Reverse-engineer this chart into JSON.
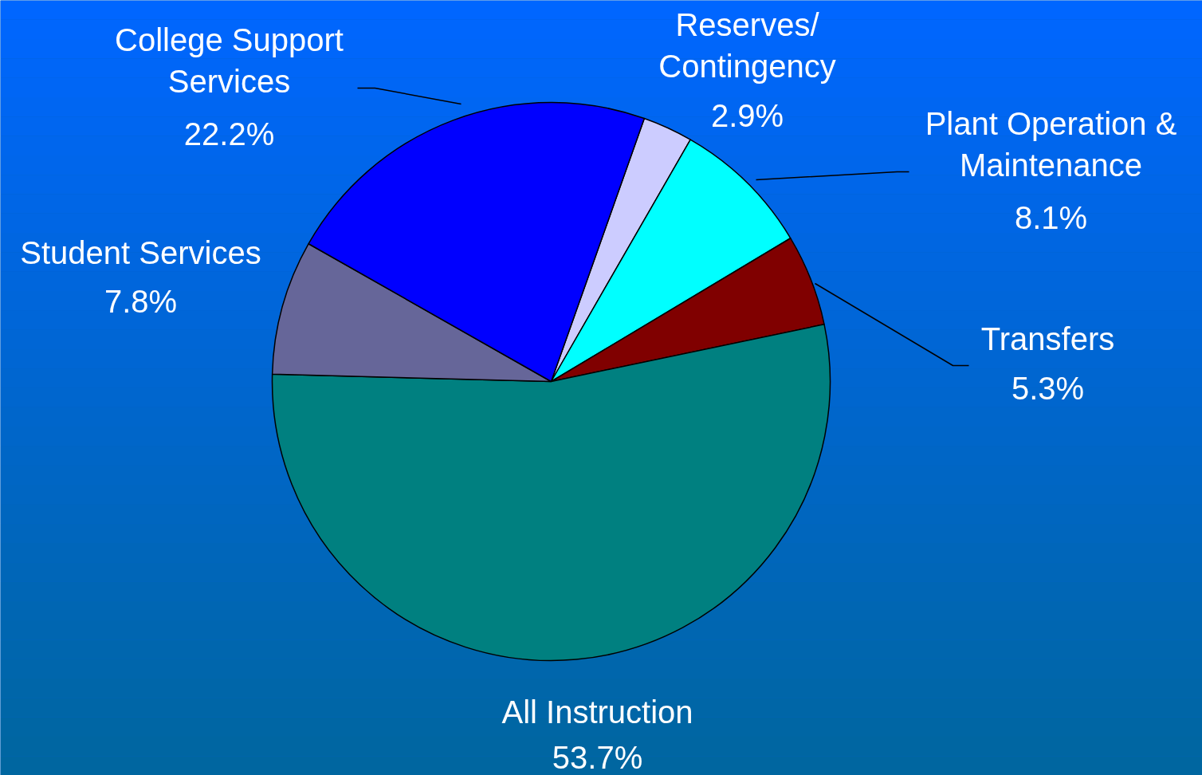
{
  "chart_data": {
    "type": "pie",
    "categories": [
      "Reserves/\nContingency",
      "Plant Operation &\nMaintenance",
      "Transfers",
      "All Instruction",
      "Student Services",
      "College Support\nServices"
    ],
    "values": [
      2.9,
      8.1,
      5.3,
      53.7,
      7.8,
      22.2
    ],
    "colors": [
      "#ccccff",
      "#00ffff",
      "#800000",
      "#008080",
      "#666699",
      "#0000ff"
    ],
    "value_labels": [
      "2.9%",
      "8.1%",
      "5.3%",
      "53.7%",
      "7.8%",
      "22.2%"
    ]
  }
}
